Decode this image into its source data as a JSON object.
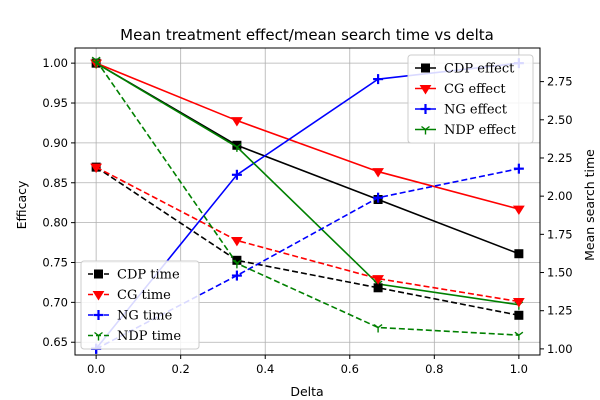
{
  "chart_data": {
    "type": "line",
    "title": "Mean treatment effect/mean search time vs delta",
    "xlabel": "Delta",
    "ylabel": "Efficacy",
    "y2label": "Mean search time",
    "xlim": [
      -0.05,
      1.05
    ],
    "ylim": [
      0.634,
      1.019
    ],
    "y2lim": [
      0.96,
      2.97
    ],
    "x_ticks": [
      0.0,
      0.2,
      0.4,
      0.6,
      0.8,
      1.0
    ],
    "x_tick_labels": [
      "0.0",
      "0.2",
      "0.4",
      "0.6",
      "0.8",
      "1.0"
    ],
    "y_ticks": [
      0.65,
      0.7,
      0.75,
      0.8,
      0.85,
      0.9,
      0.95,
      1.0
    ],
    "y_tick_labels": [
      "0.65",
      "0.70",
      "0.75",
      "0.80",
      "0.85",
      "0.90",
      "0.95",
      "1.00"
    ],
    "y2_ticks": [
      1.0,
      1.25,
      1.5,
      1.75,
      2.0,
      2.25,
      2.5,
      2.75
    ],
    "y2_tick_labels": [
      "1.00",
      "1.25",
      "1.50",
      "1.75",
      "2.00",
      "2.25",
      "2.50",
      "2.75"
    ],
    "grid": true,
    "x": [
      0.0,
      0.333,
      0.667,
      1.0
    ],
    "series": [
      {
        "name": "CDP effect",
        "axis": "left",
        "values": [
          1.0,
          0.897,
          0.829,
          0.761
        ],
        "color": "#000000",
        "linestyle": "solid",
        "marker": "square",
        "legend": "upper"
      },
      {
        "name": "CG effect",
        "axis": "left",
        "values": [
          1.0,
          0.928,
          0.864,
          0.817
        ],
        "color": "#ff0000",
        "linestyle": "solid",
        "marker": "triangle-down",
        "legend": "upper"
      },
      {
        "name": "NG effect",
        "axis": "left",
        "values": [
          0.642,
          0.86,
          0.98,
          1.0
        ],
        "color": "#0000ff",
        "linestyle": "solid",
        "marker": "plus",
        "legend": "upper"
      },
      {
        "name": "NDP effect",
        "axis": "left",
        "values": [
          1.0,
          0.895,
          0.723,
          0.697
        ],
        "color": "#008000",
        "linestyle": "solid",
        "marker": "tri-down",
        "legend": "upper"
      },
      {
        "name": "CDP time",
        "axis": "right",
        "values": [
          2.19,
          1.58,
          1.4,
          1.22
        ],
        "color": "#000000",
        "linestyle": "dashed",
        "marker": "square",
        "legend": "lower"
      },
      {
        "name": "CG time",
        "axis": "right",
        "values": [
          2.19,
          1.71,
          1.46,
          1.31
        ],
        "color": "#ff0000",
        "linestyle": "dashed",
        "marker": "triangle-down",
        "legend": "lower"
      },
      {
        "name": "NG time",
        "axis": "right",
        "values": [
          1.0,
          1.48,
          1.99,
          2.18
        ],
        "color": "#0000ff",
        "linestyle": "dashed",
        "marker": "plus",
        "legend": "lower"
      },
      {
        "name": "NDP time",
        "axis": "right",
        "values": [
          2.89,
          1.56,
          1.14,
          1.09
        ],
        "color": "#008000",
        "linestyle": "dashed",
        "marker": "tri-down",
        "legend": "lower"
      }
    ],
    "legends": [
      "upper-right",
      "lower-left"
    ]
  }
}
